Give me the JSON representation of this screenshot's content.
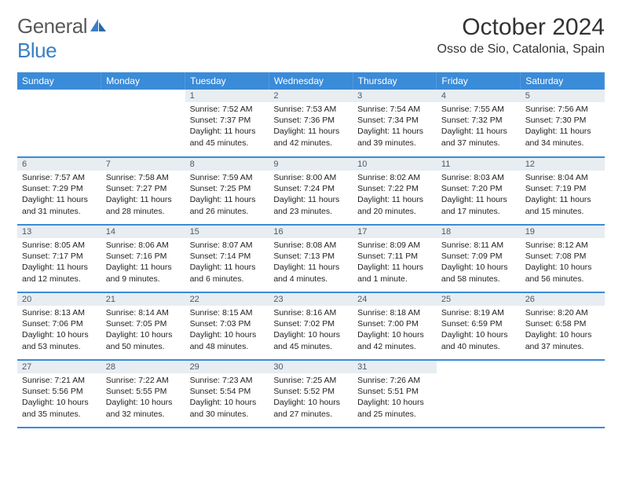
{
  "logo": {
    "text1": "General",
    "text2": "Blue"
  },
  "title": "October 2024",
  "location": "Osso de Sio, Catalonia, Spain",
  "colors": {
    "header_bg": "#3a8bd8",
    "header_text": "#ffffff",
    "daynum_bg": "#e8edf1",
    "daynum_text": "#4a5a6a",
    "border": "#3a8bd8",
    "logo_gray": "#5a5a5a",
    "logo_blue": "#3a7fc4"
  },
  "weekdays": [
    "Sunday",
    "Monday",
    "Tuesday",
    "Wednesday",
    "Thursday",
    "Friday",
    "Saturday"
  ],
  "weeks": [
    [
      null,
      null,
      {
        "n": "1",
        "sr": "7:52 AM",
        "ss": "7:37 PM",
        "dl": "11 hours and 45 minutes."
      },
      {
        "n": "2",
        "sr": "7:53 AM",
        "ss": "7:36 PM",
        "dl": "11 hours and 42 minutes."
      },
      {
        "n": "3",
        "sr": "7:54 AM",
        "ss": "7:34 PM",
        "dl": "11 hours and 39 minutes."
      },
      {
        "n": "4",
        "sr": "7:55 AM",
        "ss": "7:32 PM",
        "dl": "11 hours and 37 minutes."
      },
      {
        "n": "5",
        "sr": "7:56 AM",
        "ss": "7:30 PM",
        "dl": "11 hours and 34 minutes."
      }
    ],
    [
      {
        "n": "6",
        "sr": "7:57 AM",
        "ss": "7:29 PM",
        "dl": "11 hours and 31 minutes."
      },
      {
        "n": "7",
        "sr": "7:58 AM",
        "ss": "7:27 PM",
        "dl": "11 hours and 28 minutes."
      },
      {
        "n": "8",
        "sr": "7:59 AM",
        "ss": "7:25 PM",
        "dl": "11 hours and 26 minutes."
      },
      {
        "n": "9",
        "sr": "8:00 AM",
        "ss": "7:24 PM",
        "dl": "11 hours and 23 minutes."
      },
      {
        "n": "10",
        "sr": "8:02 AM",
        "ss": "7:22 PM",
        "dl": "11 hours and 20 minutes."
      },
      {
        "n": "11",
        "sr": "8:03 AM",
        "ss": "7:20 PM",
        "dl": "11 hours and 17 minutes."
      },
      {
        "n": "12",
        "sr": "8:04 AM",
        "ss": "7:19 PM",
        "dl": "11 hours and 15 minutes."
      }
    ],
    [
      {
        "n": "13",
        "sr": "8:05 AM",
        "ss": "7:17 PM",
        "dl": "11 hours and 12 minutes."
      },
      {
        "n": "14",
        "sr": "8:06 AM",
        "ss": "7:16 PM",
        "dl": "11 hours and 9 minutes."
      },
      {
        "n": "15",
        "sr": "8:07 AM",
        "ss": "7:14 PM",
        "dl": "11 hours and 6 minutes."
      },
      {
        "n": "16",
        "sr": "8:08 AM",
        "ss": "7:13 PM",
        "dl": "11 hours and 4 minutes."
      },
      {
        "n": "17",
        "sr": "8:09 AM",
        "ss": "7:11 PM",
        "dl": "11 hours and 1 minute."
      },
      {
        "n": "18",
        "sr": "8:11 AM",
        "ss": "7:09 PM",
        "dl": "10 hours and 58 minutes."
      },
      {
        "n": "19",
        "sr": "8:12 AM",
        "ss": "7:08 PM",
        "dl": "10 hours and 56 minutes."
      }
    ],
    [
      {
        "n": "20",
        "sr": "8:13 AM",
        "ss": "7:06 PM",
        "dl": "10 hours and 53 minutes."
      },
      {
        "n": "21",
        "sr": "8:14 AM",
        "ss": "7:05 PM",
        "dl": "10 hours and 50 minutes."
      },
      {
        "n": "22",
        "sr": "8:15 AM",
        "ss": "7:03 PM",
        "dl": "10 hours and 48 minutes."
      },
      {
        "n": "23",
        "sr": "8:16 AM",
        "ss": "7:02 PM",
        "dl": "10 hours and 45 minutes."
      },
      {
        "n": "24",
        "sr": "8:18 AM",
        "ss": "7:00 PM",
        "dl": "10 hours and 42 minutes."
      },
      {
        "n": "25",
        "sr": "8:19 AM",
        "ss": "6:59 PM",
        "dl": "10 hours and 40 minutes."
      },
      {
        "n": "26",
        "sr": "8:20 AM",
        "ss": "6:58 PM",
        "dl": "10 hours and 37 minutes."
      }
    ],
    [
      {
        "n": "27",
        "sr": "7:21 AM",
        "ss": "5:56 PM",
        "dl": "10 hours and 35 minutes."
      },
      {
        "n": "28",
        "sr": "7:22 AM",
        "ss": "5:55 PM",
        "dl": "10 hours and 32 minutes."
      },
      {
        "n": "29",
        "sr": "7:23 AM",
        "ss": "5:54 PM",
        "dl": "10 hours and 30 minutes."
      },
      {
        "n": "30",
        "sr": "7:25 AM",
        "ss": "5:52 PM",
        "dl": "10 hours and 27 minutes."
      },
      {
        "n": "31",
        "sr": "7:26 AM",
        "ss": "5:51 PM",
        "dl": "10 hours and 25 minutes."
      },
      null,
      null
    ]
  ],
  "labels": {
    "sunrise": "Sunrise:",
    "sunset": "Sunset:",
    "daylight": "Daylight:"
  }
}
